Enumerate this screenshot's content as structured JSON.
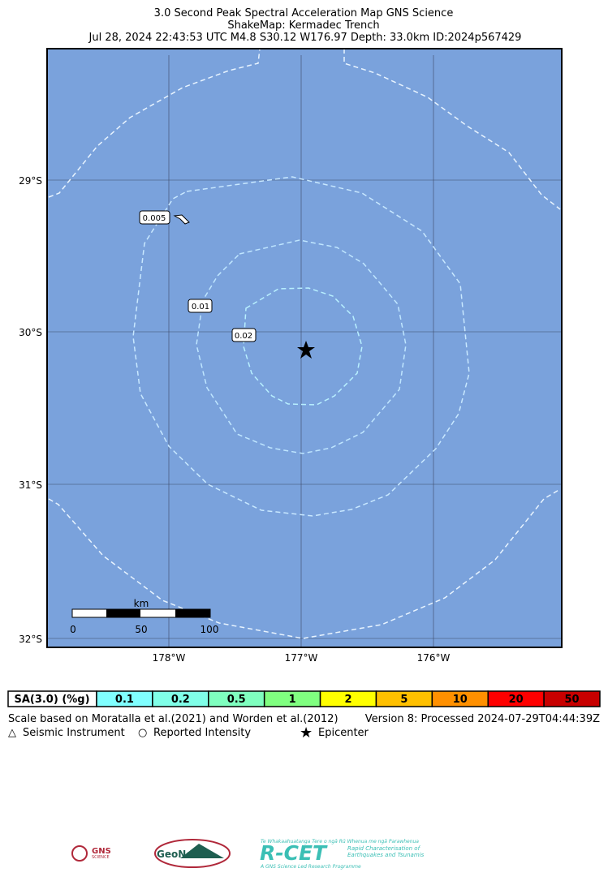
{
  "header": {
    "title": "3.0 Second Peak Spectral Acceleration Map GNS Science",
    "subtitle": "ShakeMap: Kermadec Trench",
    "event": "Jul 28, 2024 22:43:53 UTC M4.8 S30.12 W176.97 Depth: 33.0km ID:2024p567429"
  },
  "map": {
    "lat_labels": [
      "29°S",
      "30°S",
      "31°S",
      "32°S"
    ],
    "lon_labels": [
      "178°W",
      "177°W",
      "176°W"
    ],
    "contour_labels": [
      "0.005",
      "0.01",
      "0.02"
    ],
    "scale_bar": {
      "unit": "km",
      "labels": [
        "0",
        "50",
        "100"
      ]
    }
  },
  "legend": {
    "title": "SA(3.0) (%g)",
    "items": [
      {
        "label": "0.1",
        "color": "#80ffff"
      },
      {
        "label": "0.2",
        "color": "#80ffe8"
      },
      {
        "label": "0.5",
        "color": "#7fffbf"
      },
      {
        "label": "1",
        "color": "#80ff80"
      },
      {
        "label": "2",
        "color": "#ffff00"
      },
      {
        "label": "5",
        "color": "#ffc000"
      },
      {
        "label": "10",
        "color": "#ff9000"
      },
      {
        "label": "20",
        "color": "#ff0000"
      },
      {
        "label": "50",
        "color": "#c80000"
      }
    ]
  },
  "footer": {
    "scale_note": "Scale based on Moratalla et al.(2021) and Worden et al.(2012)",
    "version": "Version 8: Processed 2024-07-29T04:44:39Z",
    "symbols": [
      "Seismic Instrument",
      "Reported Intensity",
      "Epicenter"
    ]
  },
  "logos": {
    "gns": "GNS",
    "gns_sub": "SCIENCE",
    "geonet": "GeoNet",
    "rcet": "R-CET",
    "rcet_top": "Te Whakaahuatanga Tere o ngā Rū Whenua me ngā Parawhenua",
    "rcet_sub": "Rapid Characterisation of Earthquakes and Tsunamis",
    "rcet_bottom": "A GNS Science Led Research Programme"
  }
}
